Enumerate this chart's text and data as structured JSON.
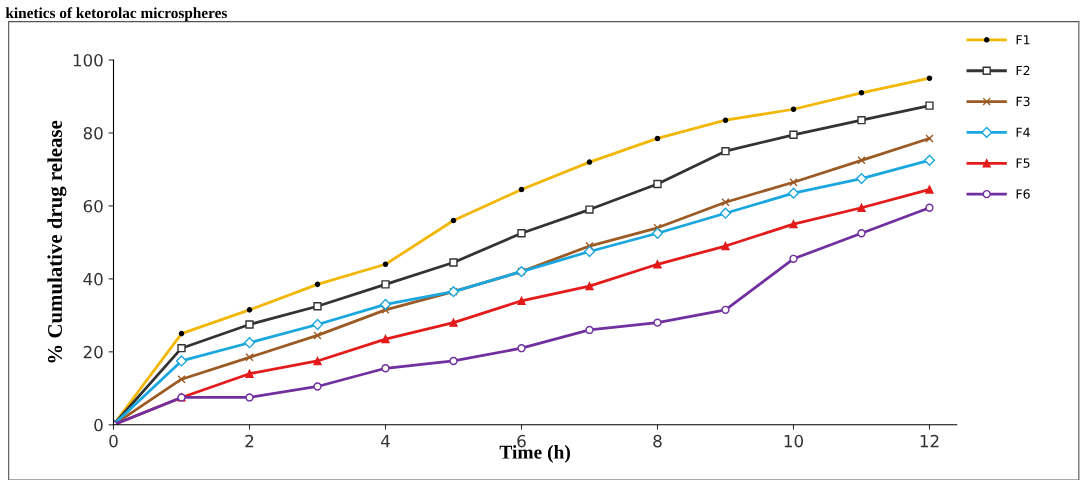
{
  "chart_data": {
    "type": "line",
    "title": "kinetics of ketorolac microspheres",
    "xlabel": "Time (h)",
    "ylabel": "% Cumulative drug release",
    "x": [
      0,
      1,
      2,
      3,
      4,
      5,
      6,
      7,
      8,
      9,
      10,
      11,
      12
    ],
    "series": [
      {
        "name": "F1",
        "color": "#f2b705",
        "marker": "circle",
        "values": [
          0,
          25,
          31.5,
          38.5,
          44,
          56,
          64.5,
          72,
          78.5,
          83.5,
          86.5,
          91,
          95
        ]
      },
      {
        "name": "F2",
        "color": "#333333",
        "marker": "square",
        "values": [
          0,
          21,
          27.5,
          32.5,
          38.5,
          44.5,
          52.5,
          59,
          66,
          75,
          79.5,
          83.5,
          87.5
        ]
      },
      {
        "name": "F3",
        "color": "#9c5a24",
        "marker": "cross",
        "values": [
          0,
          12.5,
          18.5,
          24.5,
          31.5,
          36.5,
          42,
          49,
          54,
          61,
          66.5,
          72.5,
          78.5
        ]
      },
      {
        "name": "F4",
        "color": "#1aa7e0",
        "marker": "diamond",
        "values": [
          0,
          17.5,
          22.5,
          27.5,
          33,
          36.5,
          42,
          47.5,
          52.5,
          58,
          63.5,
          67.5,
          72.5
        ]
      },
      {
        "name": "F5",
        "color": "#e31b1b",
        "marker": "triangle",
        "values": [
          0,
          7.5,
          14,
          17.5,
          23.5,
          28,
          34,
          38,
          44,
          49,
          55,
          59.5,
          64.5
        ]
      },
      {
        "name": "F6",
        "color": "#7030a0",
        "marker": "circle",
        "values": [
          0,
          7.5,
          7.5,
          10.5,
          15.5,
          17.5,
          21,
          26,
          28,
          31.5,
          45.5,
          52.5,
          59.5
        ]
      }
    ],
    "xlim": [
      0,
      12.4
    ],
    "xticks": [
      0,
      2,
      4,
      6,
      8,
      10,
      12
    ],
    "ylim": [
      0,
      100
    ],
    "yticks": [
      0,
      20,
      40,
      60,
      80,
      100
    ],
    "grid": false,
    "legend": "top right",
    "line_style": "solid"
  }
}
